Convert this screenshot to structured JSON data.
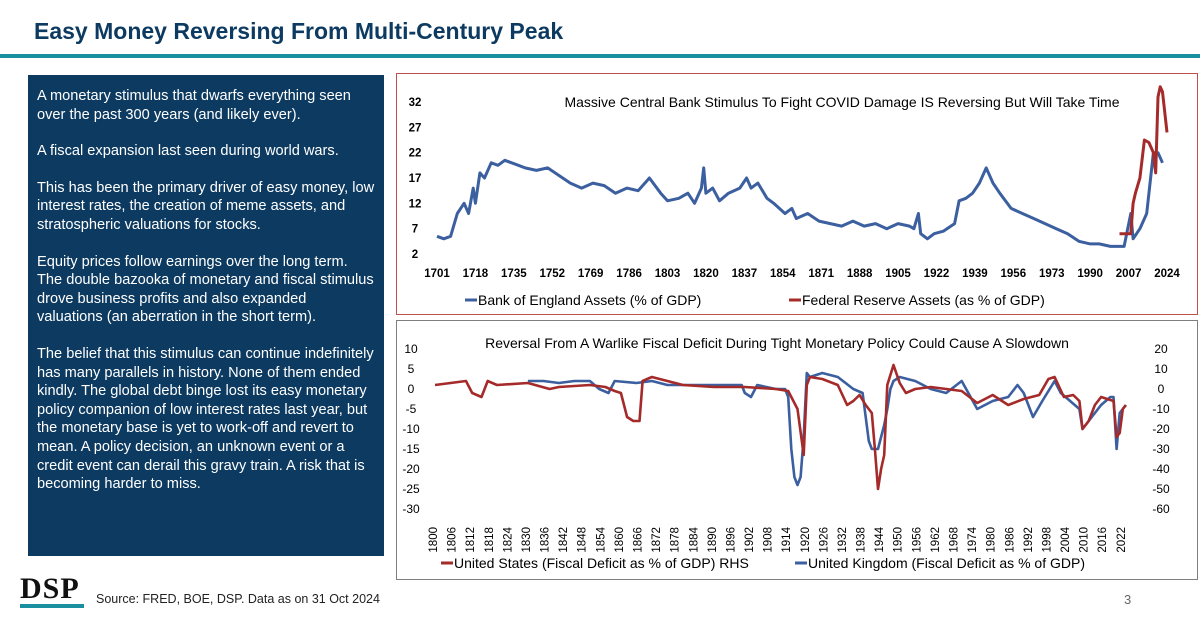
{
  "page": {
    "title": "Easy Money Reversing From Multi-Century Peak",
    "paragraphs": [
      "A monetary stimulus that dwarfs everything seen over the past 300 years (and likely ever).",
      "A fiscal expansion last seen during world wars.",
      "This has been the primary driver of easy money, low interest rates, the creation of meme assets, and stratospheric valuations for stocks.",
      "Equity prices follow earnings over the long term. The double bazooka of monetary and fiscal stimulus drove business profits and also expanded valuations (an aberration in the short term).",
      "The belief that this stimulus can continue indefinitely has many parallels in history. None of them ended kindly. The global debt binge lost its easy monetary policy companion of low interest rates last year, but the monetary base is yet to work-off and revert to mean. A policy decision, an unknown event or a credit event can derail this gravy train. A risk that is becoming harder to miss."
    ],
    "logo": "DSP",
    "source": "Source: FRED, BOE, DSP. Data as on 31 Oct 2024",
    "page_number": "3",
    "colors": {
      "navy": "#0c3a60",
      "teal": "#1a8fa0",
      "uk_blue": "#3c5fa0",
      "us_red": "#a52a2a"
    }
  },
  "chart_data": [
    {
      "type": "line",
      "title": "Massive Central Bank Stimulus To Fight COVID Damage IS Reversing But Will Take Time",
      "xlim": [
        1701,
        2024
      ],
      "ylim": [
        2,
        32
      ],
      "y_ticks": [
        "32",
        "27",
        "22",
        "17",
        "12",
        "7",
        "2"
      ],
      "x_ticks": [
        "1701",
        "1718",
        "1735",
        "1752",
        "1769",
        "1786",
        "1803",
        "1820",
        "1837",
        "1854",
        "1871",
        "1888",
        "1905",
        "1922",
        "1939",
        "1956",
        "1973",
        "1990",
        "2007",
        "2024"
      ],
      "legend_position": "bottom",
      "series": [
        {
          "name": "Bank of England Assets (% of GDP)",
          "color": "#3c5fa0",
          "points": [
            [
              1701,
              5.5
            ],
            [
              1704,
              5
            ],
            [
              1707,
              5.5
            ],
            [
              1710,
              10
            ],
            [
              1713,
              12
            ],
            [
              1715,
              10
            ],
            [
              1717,
              15
            ],
            [
              1718,
              12
            ],
            [
              1720,
              18
            ],
            [
              1722,
              17
            ],
            [
              1725,
              20
            ],
            [
              1728,
              19.5
            ],
            [
              1731,
              20.5
            ],
            [
              1734,
              20
            ],
            [
              1737,
              19.5
            ],
            [
              1740,
              19
            ],
            [
              1745,
              18.5
            ],
            [
              1750,
              19
            ],
            [
              1755,
              17.5
            ],
            [
              1760,
              16
            ],
            [
              1765,
              15
            ],
            [
              1770,
              16
            ],
            [
              1775,
              15.5
            ],
            [
              1780,
              14
            ],
            [
              1785,
              15
            ],
            [
              1790,
              14.5
            ],
            [
              1795,
              17
            ],
            [
              1800,
              14
            ],
            [
              1803,
              12.5
            ],
            [
              1808,
              13
            ],
            [
              1812,
              14
            ],
            [
              1815,
              12
            ],
            [
              1818,
              15
            ],
            [
              1819,
              19
            ],
            [
              1820,
              14
            ],
            [
              1823,
              15
            ],
            [
              1826,
              12.5
            ],
            [
              1830,
              14
            ],
            [
              1835,
              15
            ],
            [
              1838,
              17
            ],
            [
              1840,
              15
            ],
            [
              1843,
              16
            ],
            [
              1847,
              13
            ],
            [
              1850,
              12
            ],
            [
              1855,
              10
            ],
            [
              1858,
              11
            ],
            [
              1860,
              9
            ],
            [
              1865,
              10
            ],
            [
              1870,
              8.5
            ],
            [
              1875,
              8
            ],
            [
              1880,
              7.5
            ],
            [
              1885,
              8.5
            ],
            [
              1890,
              7.5
            ],
            [
              1895,
              8
            ],
            [
              1900,
              7
            ],
            [
              1905,
              8
            ],
            [
              1910,
              7.5
            ],
            [
              1912,
              7
            ],
            [
              1914,
              10
            ],
            [
              1915,
              6
            ],
            [
              1918,
              5
            ],
            [
              1921,
              6
            ],
            [
              1925,
              6.5
            ],
            [
              1930,
              8
            ],
            [
              1932,
              12.5
            ],
            [
              1935,
              13
            ],
            [
              1938,
              14
            ],
            [
              1941,
              16
            ],
            [
              1944,
              19
            ],
            [
              1947,
              16
            ],
            [
              1950,
              14
            ],
            [
              1955,
              11
            ],
            [
              1960,
              10
            ],
            [
              1965,
              9
            ],
            [
              1970,
              8
            ],
            [
              1975,
              7
            ],
            [
              1980,
              6
            ],
            [
              1985,
              4.5
            ],
            [
              1990,
              4
            ],
            [
              1994,
              4
            ],
            [
              1999,
              3.5
            ],
            [
              2002,
              3.5
            ],
            [
              2005,
              3.5
            ],
            [
              2008,
              10
            ],
            [
              2009,
              5
            ],
            [
              2012,
              7
            ],
            [
              2015,
              10
            ],
            [
              2018,
              22
            ],
            [
              2020,
              22
            ],
            [
              2022,
              20
            ]
          ]
        },
        {
          "name": "Federal Reserve Assets (as % of GDP)",
          "color": "#a52a2a",
          "points": [
            [
              2003,
              6
            ],
            [
              2008,
              6
            ],
            [
              2009,
              12
            ],
            [
              2010,
              14
            ],
            [
              2012,
              17
            ],
            [
              2014,
              24.5
            ],
            [
              2016,
              24
            ],
            [
              2018,
              22
            ],
            [
              2019,
              18
            ],
            [
              2020,
              33
            ],
            [
              2021,
              35
            ],
            [
              2022,
              34
            ],
            [
              2024,
              26
            ]
          ]
        }
      ]
    },
    {
      "type": "line",
      "title": "Reversal From A Warlike Fiscal Deficit During Tight Monetary Policy Could Cause A Slowdown",
      "xlim": [
        1800,
        2024
      ],
      "ylim_left": [
        -30,
        10
      ],
      "ylim_right": [
        -60,
        20
      ],
      "y_ticks_left": [
        "10",
        "5",
        "0",
        "-5",
        "-10",
        "-15",
        "-20",
        "-25",
        "-30"
      ],
      "y_ticks_right": [
        "20",
        "10",
        "0",
        "-10",
        "-20",
        "-30",
        "-40",
        "-50",
        "-60"
      ],
      "x_ticks": [
        "1800",
        "1806",
        "1812",
        "1818",
        "1824",
        "1830",
        "1836",
        "1842",
        "1848",
        "1854",
        "1860",
        "1866",
        "1872",
        "1878",
        "1884",
        "1890",
        "1896",
        "1902",
        "1908",
        "1914",
        "1920",
        "1926",
        "1932",
        "1938",
        "1944",
        "1950",
        "1956",
        "1962",
        "1968",
        "1974",
        "1980",
        "1986",
        "1992",
        "1998",
        "2004",
        "2010",
        "2016",
        "2022"
      ],
      "legend_position": "bottom",
      "series": [
        {
          "name": "United States (Fiscal Deficit as % of GDP) RHS",
          "color": "#a52a2a",
          "axis": "right",
          "points": [
            [
              1800,
              2
            ],
            [
              1805,
              3
            ],
            [
              1810,
              4
            ],
            [
              1812,
              -2
            ],
            [
              1815,
              -4
            ],
            [
              1817,
              4
            ],
            [
              1820,
              2
            ],
            [
              1830,
              3
            ],
            [
              1837,
              0
            ],
            [
              1840,
              1
            ],
            [
              1850,
              2
            ],
            [
              1855,
              1
            ],
            [
              1858,
              -1
            ],
            [
              1860,
              -2
            ],
            [
              1862,
              -14
            ],
            [
              1864,
              -16
            ],
            [
              1866,
              -16
            ],
            [
              1867,
              4
            ],
            [
              1870,
              6
            ],
            [
              1880,
              2
            ],
            [
              1890,
              1
            ],
            [
              1900,
              1
            ],
            [
              1910,
              0
            ],
            [
              1914,
              -1
            ],
            [
              1917,
              -10
            ],
            [
              1919,
              -33
            ],
            [
              1920,
              2
            ],
            [
              1921,
              6
            ],
            [
              1925,
              5
            ],
            [
              1930,
              2
            ],
            [
              1933,
              -8
            ],
            [
              1935,
              -6
            ],
            [
              1937,
              -3
            ],
            [
              1939,
              -8
            ],
            [
              1941,
              -12
            ],
            [
              1942,
              -30
            ],
            [
              1943,
              -50
            ],
            [
              1944,
              -40
            ],
            [
              1945,
              -33
            ],
            [
              1946,
              2
            ],
            [
              1948,
              12
            ],
            [
              1950,
              3
            ],
            [
              1952,
              -2
            ],
            [
              1955,
              0
            ],
            [
              1960,
              1
            ],
            [
              1965,
              0
            ],
            [
              1970,
              -1
            ],
            [
              1975,
              -7
            ],
            [
              1980,
              -3
            ],
            [
              1985,
              -8
            ],
            [
              1990,
              -5
            ],
            [
              1995,
              -3
            ],
            [
              1998,
              5
            ],
            [
              2000,
              6
            ],
            [
              2003,
              -4
            ],
            [
              2006,
              -3
            ],
            [
              2008,
              -6
            ],
            [
              2009,
              -20
            ],
            [
              2011,
              -16
            ],
            [
              2013,
              -8
            ],
            [
              2015,
              -4
            ],
            [
              2019,
              -6
            ],
            [
              2020,
              -24
            ],
            [
              2021,
              -22
            ],
            [
              2022,
              -10
            ],
            [
              2023,
              -8
            ]
          ]
        },
        {
          "name": "United Kingdom (Fiscal Deficit as % of GDP)",
          "color": "#3c5fa0",
          "axis": "left",
          "points": [
            [
              1830,
              2
            ],
            [
              1835,
              2
            ],
            [
              1840,
              1.5
            ],
            [
              1845,
              2
            ],
            [
              1850,
              2
            ],
            [
              1853,
              0
            ],
            [
              1856,
              -1
            ],
            [
              1858,
              2
            ],
            [
              1865,
              1.5
            ],
            [
              1870,
              2
            ],
            [
              1875,
              1
            ],
            [
              1880,
              1
            ],
            [
              1885,
              1
            ],
            [
              1890,
              1
            ],
            [
              1895,
              1
            ],
            [
              1899,
              1
            ],
            [
              1900,
              -1
            ],
            [
              1902,
              -2
            ],
            [
              1904,
              1
            ],
            [
              1910,
              0
            ],
            [
              1913,
              0
            ],
            [
              1914,
              -2
            ],
            [
              1915,
              -15
            ],
            [
              1916,
              -22
            ],
            [
              1917,
              -24
            ],
            [
              1918,
              -22
            ],
            [
              1919,
              -12
            ],
            [
              1920,
              4
            ],
            [
              1921,
              3
            ],
            [
              1925,
              4
            ],
            [
              1930,
              3
            ],
            [
              1935,
              0
            ],
            [
              1938,
              -1
            ],
            [
              1939,
              -7
            ],
            [
              1940,
              -13
            ],
            [
              1941,
              -15
            ],
            [
              1943,
              -15
            ],
            [
              1944,
              -12
            ],
            [
              1945,
              -9
            ],
            [
              1946,
              -5
            ],
            [
              1947,
              0
            ],
            [
              1948,
              2
            ],
            [
              1950,
              3
            ],
            [
              1955,
              2
            ],
            [
              1960,
              0
            ],
            [
              1965,
              -1
            ],
            [
              1970,
              2
            ],
            [
              1975,
              -5
            ],
            [
              1980,
              -3
            ],
            [
              1985,
              -2
            ],
            [
              1988,
              1
            ],
            [
              1990,
              -1
            ],
            [
              1993,
              -7
            ],
            [
              1996,
              -3
            ],
            [
              2000,
              2
            ],
            [
              2002,
              -1
            ],
            [
              2005,
              -3
            ],
            [
              2008,
              -5
            ],
            [
              2009,
              -10
            ],
            [
              2010,
              -9
            ],
            [
              2012,
              -7
            ],
            [
              2015,
              -4
            ],
            [
              2018,
              -2
            ],
            [
              2019,
              -2
            ],
            [
              2020,
              -15
            ],
            [
              2021,
              -6
            ],
            [
              2022,
              -5
            ],
            [
              2023,
              -4
            ]
          ]
        }
      ]
    }
  ]
}
